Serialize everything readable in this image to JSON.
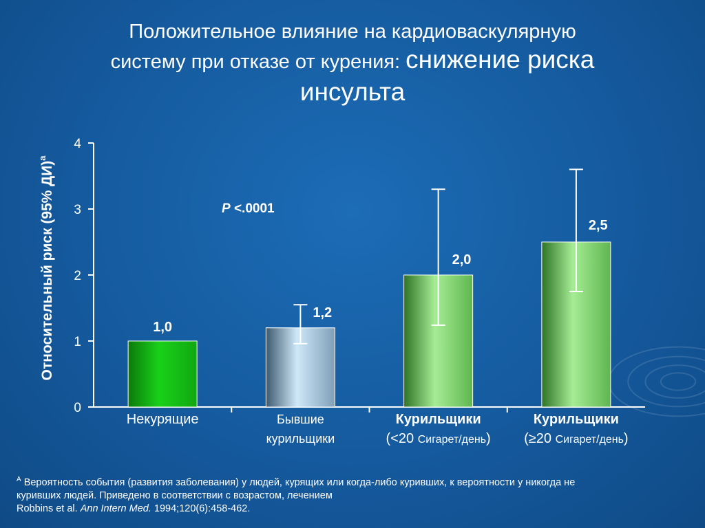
{
  "title": {
    "line1": "Положительное влияние на кардиоваскулярную",
    "line2_prefix": "систему при отказе от курения: ",
    "line2_emphasis": "снижение риска",
    "line3": "инсульта"
  },
  "chart_data": {
    "type": "bar",
    "ylabel": "Относительный риск (95% ДИ)",
    "ylabel_sup": "a",
    "ylim": [
      0,
      4
    ],
    "yticks": [
      "0",
      "1",
      "2",
      "3",
      "4"
    ],
    "annotation": {
      "italic": "P",
      "rest": " <.0001"
    },
    "categories": [
      {
        "line1": "Некурящие",
        "line2_a": "",
        "line2_b": "",
        "line2_c": ""
      },
      {
        "line1": "Бывшие",
        "line2_a": "курильщики",
        "line2_b": "",
        "line2_c": ""
      },
      {
        "line1": "Курильщики",
        "line2_a": "(<20 ",
        "line2_b": "Сигарет/день",
        "line2_c": ")"
      },
      {
        "line1": "Курильщики",
        "line2_a": "(≥20 ",
        "line2_b": "Сигарет/день",
        "line2_c": ")"
      }
    ],
    "values": [
      1.0,
      1.2,
      2.0,
      2.5
    ],
    "value_labels": [
      "1,0",
      "1,2",
      "2,0",
      "2,5"
    ],
    "error_low": [
      null,
      0.96,
      1.24,
      1.75
    ],
    "error_high": [
      null,
      1.55,
      3.3,
      3.6
    ],
    "bar_colors": [
      [
        "#19d119",
        "#11a711",
        "#0a7a0a"
      ],
      [
        "#cfe8f8",
        "#7f9fb8",
        "#3e5a70"
      ],
      [
        "#a6ec95",
        "#5fb64f",
        "#2f7326"
      ],
      [
        "#a6ec95",
        "#5fb64f",
        "#2f7326"
      ]
    ]
  },
  "footnote": {
    "sup": "A",
    "text1": " Вероятность события (развития заболевания) у людей, курящих или когда-либо куривших, к вероятности у никогда не",
    "text2": "куривших людей. Приведено в соответствии с возрастом, лечением",
    "ref_a": "Robbins et al. ",
    "ref_journal": "Ann Intern Med.",
    "ref_b": " 1994;120(6):458-462."
  }
}
